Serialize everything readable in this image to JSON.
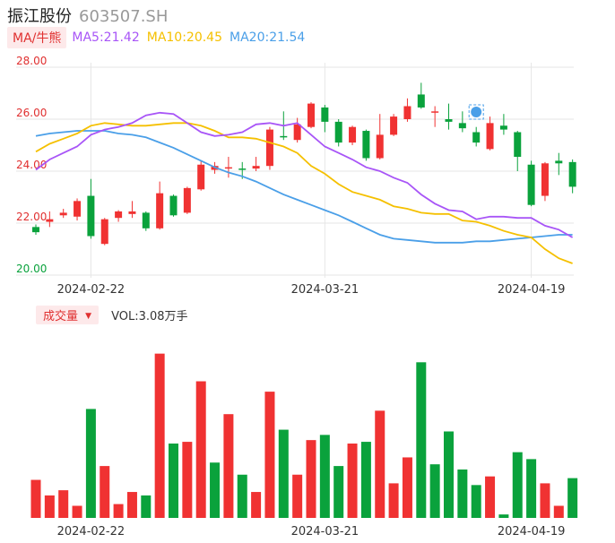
{
  "header": {
    "name": "振江股份",
    "code": "603507.SH"
  },
  "ma_legend": {
    "button_label": "MA/牛熊",
    "items": [
      {
        "label": "MA5:21.42",
        "color": "#a855f7"
      },
      {
        "label": "MA10:20.45",
        "color": "#f5c000"
      },
      {
        "label": "MA20:21.54",
        "color": "#4a9fe8"
      }
    ]
  },
  "volume_legend": {
    "button_label": "成交量",
    "arrow": "▼",
    "text": "VOL:3.08万手"
  },
  "colors": {
    "up": "#f03232",
    "down": "#0aa23c",
    "grid": "#e6e6e6",
    "axis_label": "#e03030",
    "date_label": "#333333"
  },
  "chart_data": [
    {
      "type": "candlestick",
      "ylim": [
        20.0,
        28.0
      ],
      "y_ticks": [
        "28.00",
        "26.00",
        "24.00",
        "22.00",
        "20.00"
      ],
      "x_tick_labels": [
        {
          "label": "2024-02-22",
          "index": 4
        },
        {
          "label": "2024-03-21",
          "index": 21
        },
        {
          "label": "2024-04-19",
          "index": 36
        }
      ],
      "candles": [
        {
          "o": 21.85,
          "c": 21.65,
          "h": 21.95,
          "l": 21.55
        },
        {
          "o": 22.05,
          "c": 22.15,
          "h": 22.45,
          "l": 21.85
        },
        {
          "o": 22.3,
          "c": 22.4,
          "h": 22.55,
          "l": 22.2
        },
        {
          "o": 22.25,
          "c": 22.85,
          "h": 22.95,
          "l": 22.1
        },
        {
          "o": 23.05,
          "c": 21.5,
          "h": 23.7,
          "l": 21.4
        },
        {
          "o": 21.2,
          "c": 22.15,
          "h": 22.2,
          "l": 21.15
        },
        {
          "o": 22.2,
          "c": 22.45,
          "h": 22.5,
          "l": 22.05
        },
        {
          "o": 22.35,
          "c": 22.45,
          "h": 22.85,
          "l": 22.2
        },
        {
          "o": 22.4,
          "c": 21.8,
          "h": 22.45,
          "l": 21.7
        },
        {
          "o": 21.8,
          "c": 23.15,
          "h": 23.6,
          "l": 21.75
        },
        {
          "o": 23.05,
          "c": 22.3,
          "h": 23.1,
          "l": 22.25
        },
        {
          "o": 22.4,
          "c": 23.35,
          "h": 23.4,
          "l": 22.35
        },
        {
          "o": 23.3,
          "c": 24.25,
          "h": 24.4,
          "l": 23.25
        },
        {
          "o": 24.05,
          "c": 24.2,
          "h": 24.35,
          "l": 23.9
        },
        {
          "o": 24.1,
          "c": 24.15,
          "h": 24.55,
          "l": 23.75
        },
        {
          "o": 24.1,
          "c": 24.05,
          "h": 24.35,
          "l": 23.7
        },
        {
          "o": 24.1,
          "c": 24.2,
          "h": 24.55,
          "l": 24.0
        },
        {
          "o": 24.2,
          "c": 25.6,
          "h": 25.7,
          "l": 24.05
        },
        {
          "o": 25.35,
          "c": 25.3,
          "h": 26.3,
          "l": 25.2
        },
        {
          "o": 25.2,
          "c": 25.8,
          "h": 26.05,
          "l": 25.1
        },
        {
          "o": 25.7,
          "c": 26.6,
          "h": 26.65,
          "l": 25.65
        },
        {
          "o": 26.45,
          "c": 25.9,
          "h": 26.55,
          "l": 25.5
        },
        {
          "o": 25.9,
          "c": 25.1,
          "h": 26.0,
          "l": 24.95
        },
        {
          "o": 25.1,
          "c": 25.7,
          "h": 25.75,
          "l": 25.0
        },
        {
          "o": 25.55,
          "c": 24.5,
          "h": 25.6,
          "l": 24.4
        },
        {
          "o": 24.5,
          "c": 25.4,
          "h": 26.2,
          "l": 24.45
        },
        {
          "o": 25.4,
          "c": 26.1,
          "h": 26.2,
          "l": 25.35
        },
        {
          "o": 26.0,
          "c": 26.5,
          "h": 26.8,
          "l": 25.9
        },
        {
          "o": 26.95,
          "c": 26.45,
          "h": 27.4,
          "l": 26.4
        },
        {
          "o": 26.25,
          "c": 26.3,
          "h": 26.5,
          "l": 25.7
        },
        {
          "o": 26.0,
          "c": 25.9,
          "h": 26.6,
          "l": 25.6
        },
        {
          "o": 25.85,
          "c": 25.65,
          "h": 26.3,
          "l": 25.5
        },
        {
          "o": 25.5,
          "c": 25.1,
          "h": 25.7,
          "l": 24.95
        },
        {
          "o": 24.85,
          "c": 25.85,
          "h": 26.1,
          "l": 24.8
        },
        {
          "o": 25.75,
          "c": 25.6,
          "h": 26.2,
          "l": 25.4
        },
        {
          "o": 25.5,
          "c": 24.55,
          "h": 25.55,
          "l": 24.0
        },
        {
          "o": 24.25,
          "c": 22.7,
          "h": 24.4,
          "l": 22.65
        },
        {
          "o": 23.05,
          "c": 24.3,
          "h": 24.35,
          "l": 22.85
        },
        {
          "o": 24.4,
          "c": 24.3,
          "h": 24.7,
          "l": 23.85
        },
        {
          "o": 24.35,
          "c": 23.4,
          "h": 24.45,
          "l": 23.15
        }
      ],
      "ma5": [
        24.05,
        24.45,
        24.7,
        24.95,
        25.4,
        25.6,
        25.7,
        25.85,
        26.15,
        26.25,
        26.2,
        25.85,
        25.5,
        25.35,
        25.4,
        25.5,
        25.8,
        25.85,
        25.75,
        25.85,
        25.4,
        24.95,
        24.7,
        24.45,
        24.15,
        24.0,
        23.75,
        23.55,
        23.1,
        22.75,
        22.5,
        22.45,
        22.15,
        22.25,
        22.25,
        22.2,
        22.2,
        21.9,
        21.75,
        21.45
      ],
      "ma10": [
        24.75,
        25.05,
        25.25,
        25.45,
        25.75,
        25.85,
        25.8,
        25.75,
        25.75,
        25.8,
        25.85,
        25.85,
        25.75,
        25.55,
        25.3,
        25.3,
        25.25,
        25.1,
        24.95,
        24.7,
        24.2,
        23.9,
        23.5,
        23.2,
        23.05,
        22.9,
        22.65,
        22.55,
        22.4,
        22.35,
        22.35,
        22.1,
        22.05,
        21.9,
        21.7,
        21.55,
        21.45,
        21.0,
        20.65,
        20.45
      ],
      "ma20": [
        25.35,
        25.45,
        25.5,
        25.55,
        25.55,
        25.55,
        25.45,
        25.4,
        25.3,
        25.1,
        24.9,
        24.65,
        24.4,
        24.15,
        23.95,
        23.8,
        23.6,
        23.35,
        23.1,
        22.9,
        22.7,
        22.5,
        22.3,
        22.05,
        21.8,
        21.55,
        21.4,
        21.35,
        21.3,
        21.25,
        21.25,
        21.25,
        21.3,
        21.3,
        21.35,
        21.4,
        21.45,
        21.5,
        21.55,
        21.55
      ]
    },
    {
      "type": "bar",
      "title": "成交量",
      "x_tick_labels": [
        {
          "label": "2024-02-22",
          "index": 4
        },
        {
          "label": "2024-03-21",
          "index": 21
        },
        {
          "label": "2024-04-19",
          "index": 36
        }
      ],
      "ylim": [
        0,
        100
      ],
      "values": [
        22,
        13,
        16,
        7,
        63,
        30,
        8,
        15,
        13,
        95,
        43,
        44,
        79,
        32,
        60,
        25,
        15,
        73,
        51,
        25,
        45,
        48,
        30,
        43,
        44,
        62,
        20,
        35,
        90,
        31,
        50,
        28,
        19,
        24,
        2,
        38,
        34,
        20,
        7,
        23
      ],
      "up": [
        true,
        true,
        true,
        true,
        false,
        true,
        true,
        true,
        false,
        true,
        false,
        true,
        true,
        false,
        true,
        false,
        true,
        true,
        false,
        true,
        true,
        false,
        false,
        true,
        false,
        true,
        true,
        true,
        false,
        false,
        false,
        false,
        false,
        true,
        false,
        false,
        false,
        true,
        true,
        false
      ]
    }
  ]
}
